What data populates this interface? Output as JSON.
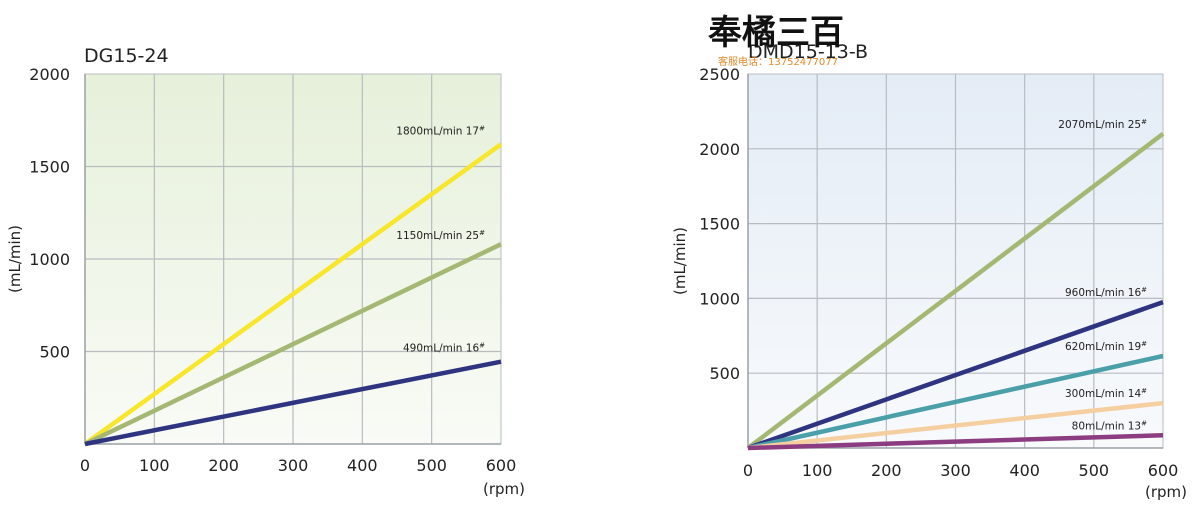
{
  "watermark": {
    "logo_text": "奉橘三百",
    "subtext": "客服电话：13752477077"
  },
  "chart_data": [
    {
      "type": "line",
      "title": "DG15-24",
      "ylabel": "(mL/min)",
      "xlabel": "(rpm)",
      "xlim": [
        0,
        600
      ],
      "ylim": [
        0,
        2000
      ],
      "x_ticks": [
        0,
        100,
        200,
        300,
        400,
        500,
        600
      ],
      "y_ticks": [
        500,
        1000,
        1500,
        2000
      ],
      "grid": true,
      "colors": {
        "bg_top": "#e6f0da",
        "bg_bottom": "#f9fbf6",
        "grid": "#b8bcc0"
      },
      "series": [
        {
          "name": "1800mL/min 17",
          "sup": "#",
          "color": "#f7e62a",
          "x": [
            0,
            600
          ],
          "y": [
            0,
            1620
          ]
        },
        {
          "name": "1150mL/min 25",
          "sup": "#",
          "color": "#a5b873",
          "x": [
            0,
            600
          ],
          "y": [
            0,
            1080
          ]
        },
        {
          "name": "490mL/min 16",
          "sup": "#",
          "color": "#2e3480",
          "x": [
            0,
            600
          ],
          "y": [
            0,
            445
          ]
        }
      ]
    },
    {
      "type": "line",
      "title": "DMD15-13-B",
      "ylabel": "(mL/min)",
      "xlabel": "(rpm)",
      "xlim": [
        0,
        600
      ],
      "ylim": [
        0,
        2500
      ],
      "x_ticks": [
        0,
        100,
        200,
        300,
        400,
        500,
        600
      ],
      "y_ticks": [
        500,
        1000,
        1500,
        2000,
        2500
      ],
      "grid": true,
      "colors": {
        "bg_top": "#e4ecf6",
        "bg_bottom": "#f8fafc",
        "grid": "#b8bcc0"
      },
      "series": [
        {
          "name": "2070mL/min 25",
          "sup": "#",
          "color": "#a5b873",
          "x": [
            0,
            600
          ],
          "y": [
            0,
            2100
          ]
        },
        {
          "name": "960mL/min 16",
          "sup": "#",
          "color": "#2e3480",
          "x": [
            0,
            600
          ],
          "y": [
            0,
            975
          ]
        },
        {
          "name": "620mL/min 19",
          "sup": "#",
          "color": "#4a9fa8",
          "x": [
            0,
            600
          ],
          "y": [
            0,
            615
          ]
        },
        {
          "name": "300mL/min 14",
          "sup": "#",
          "color": "#f5cfa0",
          "x": [
            0,
            600
          ],
          "y": [
            0,
            300
          ]
        },
        {
          "name": "80mL/min 13",
          "sup": "#",
          "color": "#8c3c80",
          "x": [
            0,
            600
          ],
          "y": [
            0,
            85
          ]
        }
      ]
    }
  ]
}
